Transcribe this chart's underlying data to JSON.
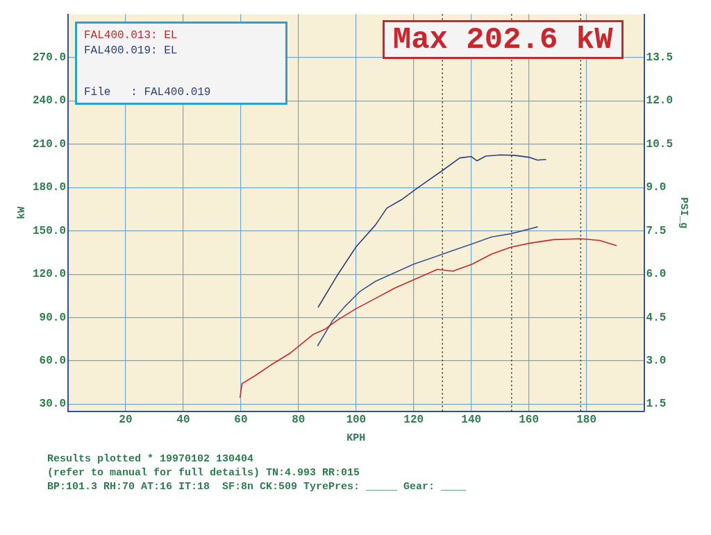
{
  "chart_data": {
    "type": "line",
    "xlabel": "KPH",
    "ylabel": "kW",
    "y2label": "PSI_g",
    "xlim": [
      0,
      200
    ],
    "xticks": [
      20,
      40,
      60,
      80,
      100,
      120,
      140,
      160,
      180
    ],
    "ylim": [
      25,
      300
    ],
    "yticks": [
      {
        "value": 30,
        "label": "30.0"
      },
      {
        "value": 60,
        "label": "60.0"
      },
      {
        "value": 90,
        "label": "90.0"
      },
      {
        "value": 120,
        "label": "120.0"
      },
      {
        "value": 150,
        "label": "150.0"
      },
      {
        "value": 180,
        "label": "180.0"
      },
      {
        "value": 210,
        "label": "210.0"
      },
      {
        "value": 240,
        "label": "240.0"
      },
      {
        "value": 270,
        "label": "270.0"
      }
    ],
    "y2lim": [
      1.25,
      15
    ],
    "y2ticks": [
      1.5,
      {
        "value": 3,
        "label": "3.0"
      },
      4.5,
      {
        "value": 6,
        "label": "6.0"
      },
      7.5,
      {
        "value": 9,
        "label": "9.0"
      },
      10.5,
      {
        "value": 12,
        "label": "12.0"
      },
      13.5
    ],
    "grid": true,
    "legend": "top left",
    "line_style": "solid",
    "marker": "none",
    "series": [
      {
        "name": "FAL400.013: EL",
        "color": "#c8282d",
        "x": [
          59.7,
          60.4,
          65.1,
          70.5,
          77.2,
          85.2,
          89.3,
          93.3,
          100,
          106.7,
          113.4,
          120.1,
          128.2,
          133.6,
          140.3,
          147,
          153.7,
          160.4,
          168.5,
          177.9,
          184.6,
          190.5
        ],
        "values": [
          34.5,
          44.2,
          49.9,
          57.2,
          65.4,
          78.4,
          82,
          87.9,
          96.1,
          103.2,
          110.3,
          116.2,
          123.3,
          122.1,
          126.9,
          133.9,
          138.7,
          141.5,
          143.9,
          144.6,
          143.4,
          139.8
        ]
      },
      {
        "name": "FAL400.019: EL",
        "color": "#2a3f7a",
        "x": [
          86.8,
          93.3,
          100,
          106.7,
          110.7,
          116.1,
          121.5,
          130,
          136,
          140,
          142,
          145,
          150,
          155,
          160,
          163,
          166
        ],
        "values": [
          97,
          118.6,
          138.9,
          154,
          165.8,
          172,
          180,
          191.8,
          200.5,
          201.5,
          198.5,
          201.8,
          202.6,
          202.3,
          201,
          199,
          199.5
        ]
      },
      {
        "color": "#3a5590",
        "axis": "y2",
        "x": [
          86.6,
          91.9,
          96,
          101.3,
          106.7,
          113.4,
          120.1,
          126.8,
          133.6,
          140.3,
          147,
          153.7,
          163.1
        ],
        "values": [
          3.51,
          4.4,
          4.87,
          5.4,
          5.75,
          6.05,
          6.35,
          6.58,
          6.82,
          7.05,
          7.29,
          7.4,
          7.64
        ]
      }
    ],
    "ref_lines": [
      {
        "axis": "x",
        "value": 130,
        "color": "#222222",
        "line_style": "dotted"
      },
      {
        "axis": "x",
        "value": 154,
        "color": "#222222",
        "line_style": "dotted"
      },
      {
        "axis": "x",
        "value": 178,
        "color": "#222222",
        "line_style": "dotted"
      }
    ],
    "annotations": [
      "Max 202.6 kW",
      "File   : FAL400.019",
      "Results plotted * 19970102 130404",
      "(refer to manual for full details) TN:4.993 RR:015",
      "BP:101.3 RH:70 AT:16 IT:18  SF:8n CK:509 TyrePres: _____ Gear: ____"
    ]
  }
}
